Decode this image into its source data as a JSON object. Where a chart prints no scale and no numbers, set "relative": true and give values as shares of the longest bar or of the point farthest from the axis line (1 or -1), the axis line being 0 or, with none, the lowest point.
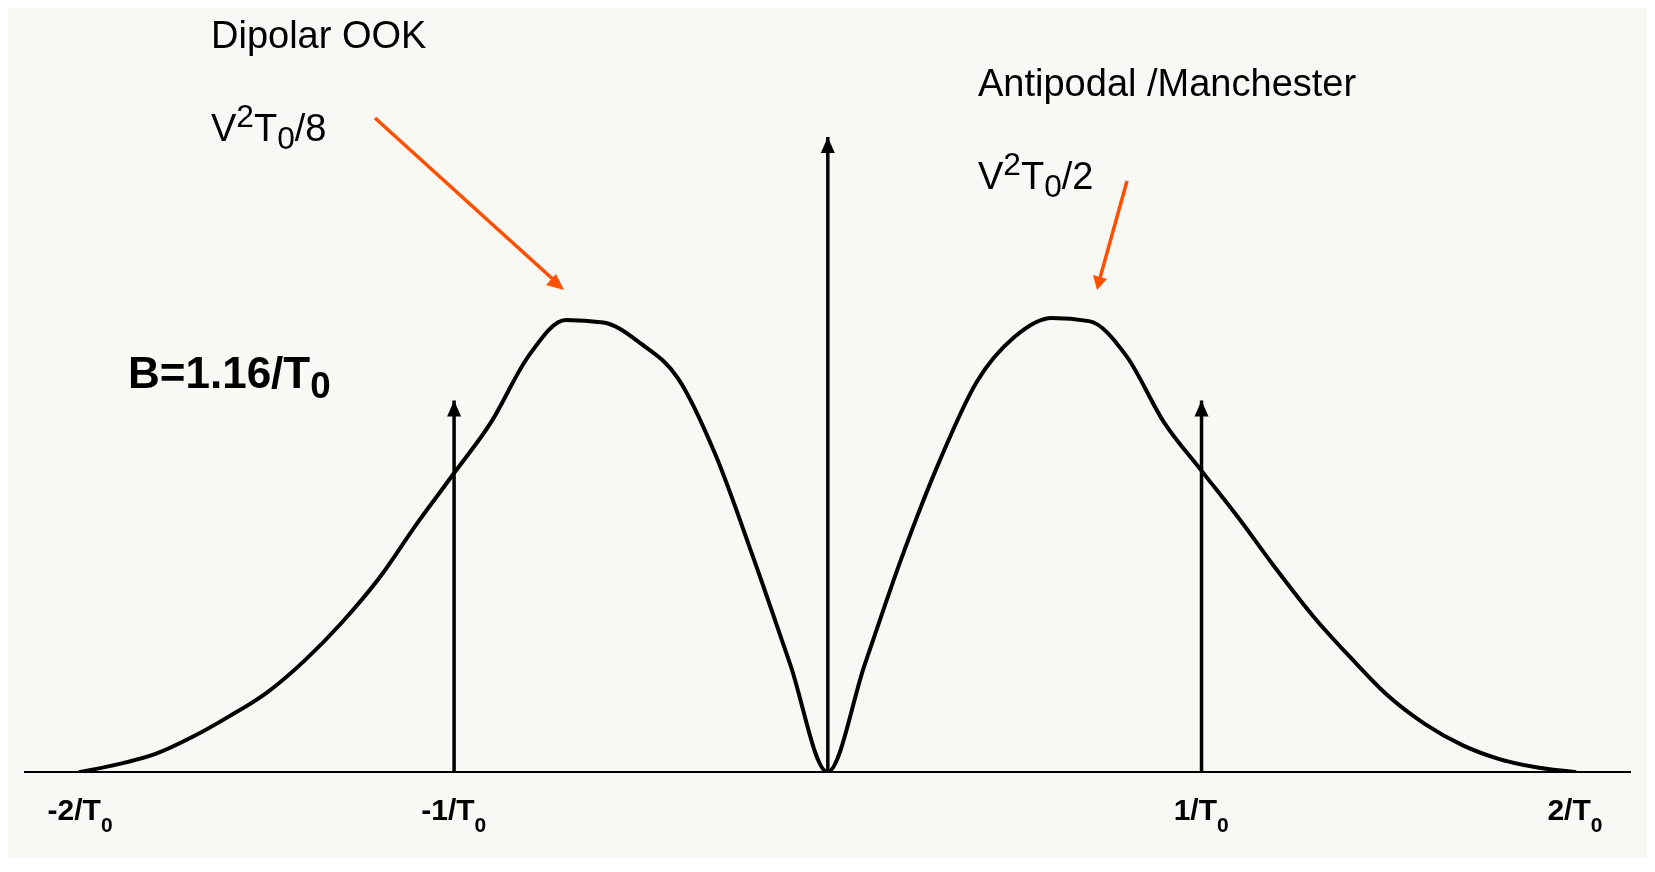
{
  "chart_data": {
    "type": "line",
    "relative": true,
    "categories": [
      null,
      "-2/T$_{0}$",
      null,
      null,
      null,
      null,
      null,
      null,
      null,
      null,
      null,
      "-1/T$_{0}$",
      null,
      null,
      null,
      null,
      null,
      null,
      null,
      null,
      null,
      null,
      null,
      null,
      null,
      null,
      null,
      null,
      null,
      null,
      null,
      "1/T$_{0}$",
      null,
      null,
      null,
      null,
      null,
      null,
      null,
      null,
      null,
      "2/T$_{0}$",
      null
    ],
    "series": [
      {
        "color": "#000000",
        "values": [
          null,
          0,
          0.012,
          0.028,
          0.055,
          0.088,
          0.125,
          0.175,
          0.235,
          0.305,
          0.39,
          0.47,
          0.551,
          0.655,
          0.712,
          0.708,
          0.675,
          0.62,
          0.5,
          0.34,
          0.17,
          0,
          0.17,
          0.34,
          0.49,
          0.615,
          0.685,
          0.715,
          0.71,
          0.655,
          0.551,
          0.475,
          0.4,
          0.32,
          0.245,
          0.18,
          0.12,
          0.075,
          0.042,
          0.02,
          0.007,
          0,
          null
        ]
      },
      {
        "type": "bar",
        "color": "#000000",
        "values": [
          null,
          null,
          null,
          null,
          null,
          null,
          null,
          null,
          null,
          null,
          null,
          0.585,
          null,
          null,
          null,
          null,
          null,
          null,
          null,
          null,
          null,
          1,
          null,
          null,
          null,
          null,
          null,
          null,
          null,
          null,
          null,
          0.585,
          null,
          null,
          null,
          null,
          null,
          null,
          null,
          null,
          null,
          null,
          null
        ]
      }
    ],
    "annotations": [
      "Dipolar OOK",
      "V$^{2}$T$_{0}$/8",
      "Antipodal /Manchester",
      "V$^{2}$T$_{0}$/2",
      "B=1.16/T$_{0}$"
    ],
    "marker": "none",
    "line_style": "solid"
  }
}
